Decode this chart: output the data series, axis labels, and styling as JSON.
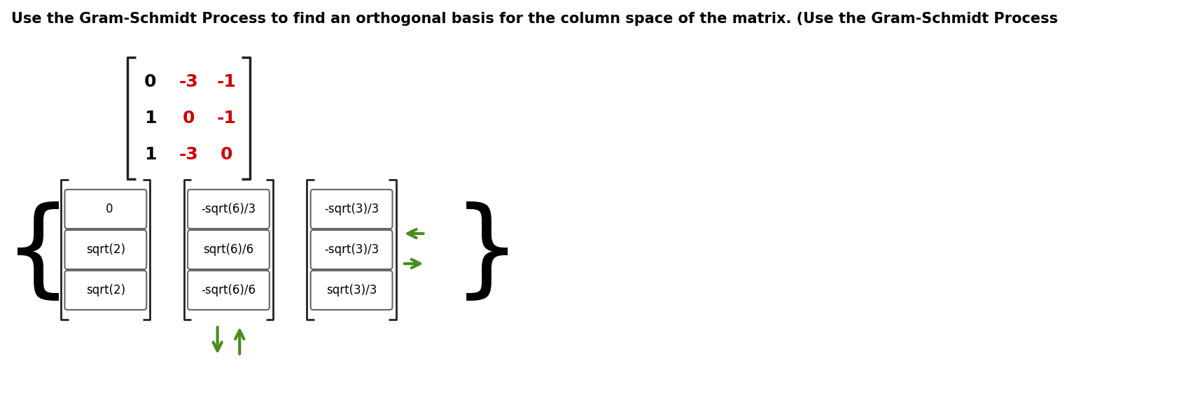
{
  "title": "Use the Gram-Schmidt Process to find an orthogonal basis for the column space of the matrix. (Use the Gram-Schmidt Process",
  "title_fontsize": 15,
  "title_color": "#000000",
  "bg_color": "#ffffff",
  "matrix": [
    [
      "0",
      "-3",
      "-1"
    ],
    [
      "1",
      "0",
      "-1"
    ],
    [
      "1",
      "-3",
      "0"
    ]
  ],
  "matrix_col1_color": "#000000",
  "matrix_col2_color": "#cc0000",
  "matrix_col3_color": "#cc0000",
  "vec1": [
    "0",
    "sqrt(2)",
    "sqrt(2)"
  ],
  "vec2": [
    "-sqrt(6)/3",
    "sqrt(6)/6",
    "-sqrt(6)/6"
  ],
  "vec3": [
    "-sqrt(3)/3",
    "-sqrt(3)/3",
    "sqrt(3)/3"
  ],
  "vec_text_color": "#000000",
  "box_edge_color": "#666666",
  "arrow_color": "#4a8c1c",
  "curly_color": "#000000",
  "bracket_color": "#222222"
}
